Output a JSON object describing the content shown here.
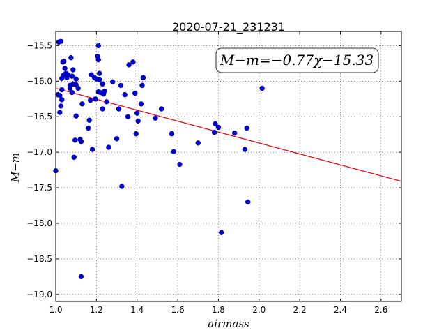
{
  "chart_data": {
    "type": "scatter",
    "title": "2020-07-21_231231",
    "xlabel": "airmass",
    "ylabel": "M−m",
    "xlim": [
      1.0,
      2.7
    ],
    "ylim": [
      -19.1,
      -15.3
    ],
    "y_inverted": true,
    "grid": true,
    "grid_style": "dotted",
    "xticks": [
      "1.0",
      "1.2",
      "1.4",
      "1.6",
      "1.8",
      "2.0",
      "2.2",
      "2.4",
      "2.6"
    ],
    "yticks": [
      "−15.5",
      "−16.0",
      "−16.5",
      "−17.0",
      "−17.5",
      "−18.0",
      "−18.5",
      "−19.0"
    ],
    "annotation": "M−m=−0.77χ−15.33",
    "annotation_location": "top-right",
    "fit_line": {
      "slope": -0.77,
      "intercept": -15.33,
      "color": "#e00000"
    },
    "point_color": "#0000cc",
    "points": [
      [
        1.0,
        -17.26
      ],
      [
        1.01,
        -16.19
      ],
      [
        1.015,
        -15.45
      ],
      [
        1.02,
        -16.44
      ],
      [
        1.025,
        -15.44
      ],
      [
        1.02,
        -16.2
      ],
      [
        1.03,
        -16.12
      ],
      [
        1.03,
        -16.26
      ],
      [
        1.025,
        -16.35
      ],
      [
        1.03,
        -15.96
      ],
      [
        1.035,
        -15.73
      ],
      [
        1.04,
        -15.72
      ],
      [
        1.04,
        -15.91
      ],
      [
        1.045,
        -15.82
      ],
      [
        1.05,
        -15.89
      ],
      [
        1.055,
        -15.95
      ],
      [
        1.06,
        -15.91
      ],
      [
        1.07,
        -16.06
      ],
      [
        1.07,
        -16.1
      ],
      [
        1.075,
        -15.67
      ],
      [
        1.08,
        -15.93
      ],
      [
        1.085,
        -15.84
      ],
      [
        1.08,
        -16.16
      ],
      [
        1.085,
        -16.04
      ],
      [
        1.09,
        -17.07
      ],
      [
        1.095,
        -16.83
      ],
      [
        1.1,
        -16.49
      ],
      [
        1.1,
        -16.05
      ],
      [
        1.1,
        -15.97
      ],
      [
        1.11,
        -16.1
      ],
      [
        1.12,
        -16.82
      ],
      [
        1.125,
        -16.85
      ],
      [
        1.125,
        -18.75
      ],
      [
        1.13,
        -16.32
      ],
      [
        1.16,
        -16.66
      ],
      [
        1.165,
        -16.55
      ],
      [
        1.17,
        -16.27
      ],
      [
        1.175,
        -15.91
      ],
      [
        1.18,
        -16.96
      ],
      [
        1.19,
        -15.95
      ],
      [
        1.195,
        -16.25
      ],
      [
        1.2,
        -15.97
      ],
      [
        1.205,
        -15.65
      ],
      [
        1.21,
        -15.7
      ],
      [
        1.21,
        -15.5
      ],
      [
        1.21,
        -16.15
      ],
      [
        1.215,
        -15.89
      ],
      [
        1.215,
        -15.98
      ],
      [
        1.22,
        -16.16
      ],
      [
        1.23,
        -16.04
      ],
      [
        1.23,
        -16.39
      ],
      [
        1.235,
        -16.18
      ],
      [
        1.24,
        -16.14
      ],
      [
        1.25,
        -16.29
      ],
      [
        1.26,
        -16.93
      ],
      [
        1.28,
        -16.01
      ],
      [
        1.3,
        -16.81
      ],
      [
        1.31,
        -16.39
      ],
      [
        1.32,
        -16.06
      ],
      [
        1.325,
        -17.48
      ],
      [
        1.34,
        -16.19
      ],
      [
        1.355,
        -16.5
      ],
      [
        1.36,
        -15.77
      ],
      [
        1.38,
        -15.73
      ],
      [
        1.39,
        -16.17
      ],
      [
        1.395,
        -16.74
      ],
      [
        1.4,
        -16.45
      ],
      [
        1.405,
        -16.56
      ],
      [
        1.42,
        -16.32
      ],
      [
        1.425,
        -16.06
      ],
      [
        1.43,
        -15.95
      ],
      [
        1.49,
        -16.52
      ],
      [
        1.52,
        -16.39
      ],
      [
        1.57,
        -16.74
      ],
      [
        1.58,
        -16.99
      ],
      [
        1.61,
        -17.17
      ],
      [
        1.7,
        -16.87
      ],
      [
        1.78,
        -16.72
      ],
      [
        1.785,
        -16.6
      ],
      [
        1.8,
        -16.65
      ],
      [
        1.815,
        -18.13
      ],
      [
        1.88,
        -16.73
      ],
      [
        1.93,
        -16.96
      ],
      [
        1.94,
        -16.66
      ],
      [
        1.945,
        -17.7
      ],
      [
        2.015,
        -16.1
      ]
    ]
  }
}
